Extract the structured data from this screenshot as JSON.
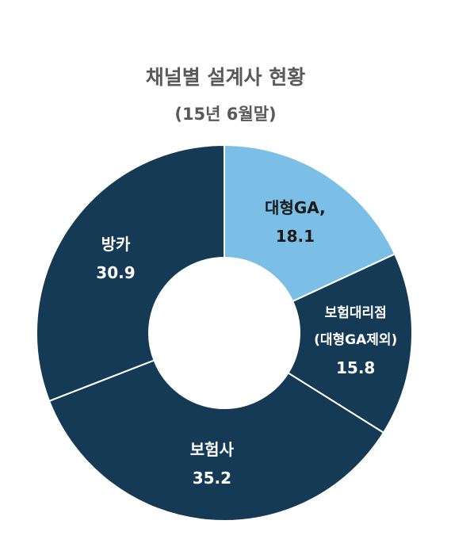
{
  "chart_data": {
    "type": "donut",
    "title": "채널별 설계사 현황",
    "subtitle": "(15년 6월말)",
    "categories": [
      "대형GA,",
      "보험대리점\n(대형GA제외)",
      "보험사",
      "방카"
    ],
    "values": [
      18.1,
      15.8,
      35.2,
      30.9
    ],
    "colors": [
      "#7cbfe6",
      "#143a55",
      "#143a55",
      "#143a55"
    ],
    "label_colors": [
      "#1a1a1a",
      "#ffffff",
      "#ffffff",
      "#ffffff"
    ]
  }
}
